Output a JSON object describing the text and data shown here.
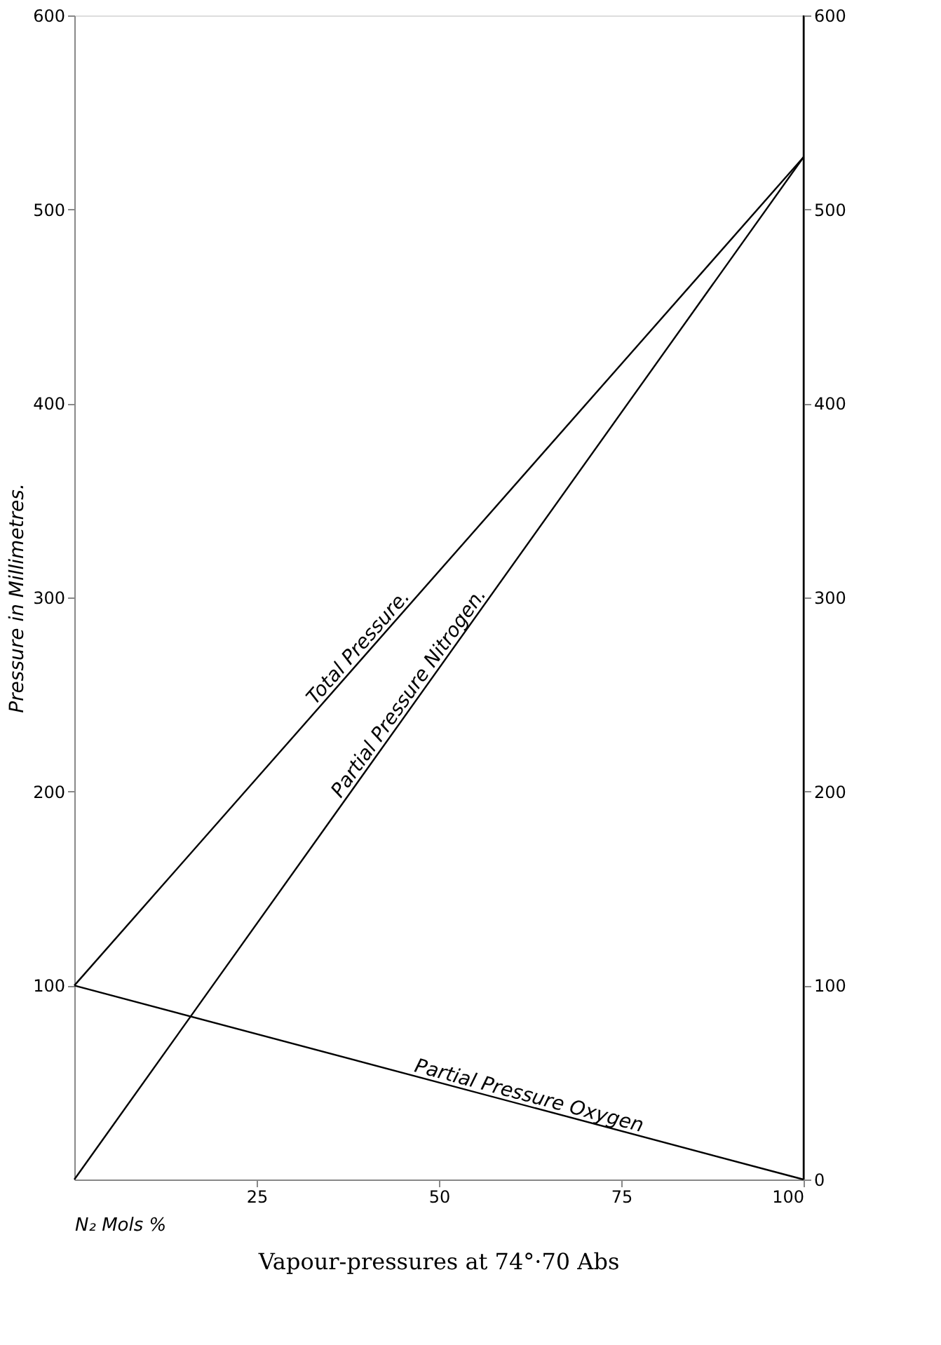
{
  "chart_data": {
    "type": "line",
    "title": "Vapour-pressures at 74°·70 Abs",
    "xlabel": "N₂ Mols %",
    "ylabel": "Pressure in Millimetres.",
    "x": [
      0,
      100
    ],
    "series": [
      {
        "name": "Total Pressure.",
        "color": "#000000",
        "values": [
          100,
          527
        ]
      },
      {
        "name": "Partial Pressure Nitrogen.",
        "color": "#000000",
        "values": [
          0,
          527
        ]
      },
      {
        "name": "Partial Pressure Oxygen",
        "color": "#000000",
        "values": [
          100,
          0
        ]
      }
    ],
    "xlim": [
      0,
      100
    ],
    "xticks": [
      25,
      50,
      75,
      100
    ],
    "ylim": [
      0,
      600
    ],
    "yticks": [
      100,
      200,
      300,
      400,
      500,
      600
    ],
    "y2lim": [
      0,
      600
    ],
    "y2ticks": [
      0,
      100,
      200,
      300,
      400,
      500,
      600
    ],
    "grid": false,
    "marker": "none",
    "line_style": "solid"
  }
}
